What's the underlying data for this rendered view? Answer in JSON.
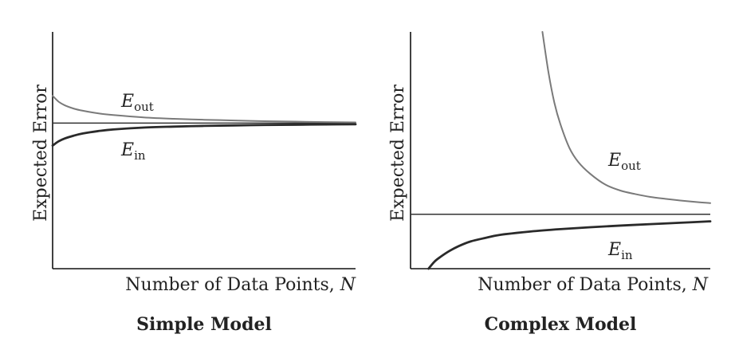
{
  "colors": {
    "e_out": "#7a7a7a",
    "e_in": "#2a2a2a",
    "asymptote": "#333333",
    "axis": "#111111"
  },
  "chart_data": [
    {
      "type": "line",
      "title": "Simple Model",
      "xlabel": "Number of Data Points, N",
      "xlabel_main": "Number of Data Points, ",
      "xlabel_var": "N",
      "ylabel": "Expected Error",
      "xlim": [
        0,
        100
      ],
      "ylim": [
        0,
        100
      ],
      "asymptote": 61.5,
      "series": [
        {
          "name": "Eout",
          "name_main": "E",
          "name_sub": "out",
          "x": [
            0,
            2,
            4,
            7,
            10,
            15,
            20,
            30,
            40,
            50,
            60,
            70,
            80,
            90,
            100
          ],
          "y": [
            73,
            70.5,
            69,
            67.6,
            66.7,
            65.6,
            64.9,
            63.9,
            63.3,
            62.9,
            62.6,
            62.3,
            62.1,
            61.9,
            61.8
          ]
        },
        {
          "name": "Ein",
          "name_main": "E",
          "name_sub": "in",
          "x": [
            0,
            2,
            4,
            7,
            10,
            15,
            20,
            30,
            40,
            50,
            60,
            70,
            80,
            90,
            100
          ],
          "y": [
            52,
            53.8,
            55,
            56.2,
            57.1,
            58.1,
            58.8,
            59.6,
            60,
            60.3,
            60.5,
            60.7,
            60.8,
            60.9,
            61
          ]
        }
      ]
    },
    {
      "type": "line",
      "title": "Complex Model",
      "xlabel": "Number of Data Points, N",
      "xlabel_main": "Number of Data Points, ",
      "xlabel_var": "N",
      "ylabel": "Expected Error",
      "xlim": [
        0,
        100
      ],
      "ylim": [
        0,
        100
      ],
      "asymptote": 23,
      "series": [
        {
          "name": "Eout",
          "name_main": "E",
          "name_sub": "out",
          "x": [
            44,
            46,
            48,
            50,
            53,
            56,
            60,
            65,
            70,
            75,
            80,
            85,
            90,
            95,
            100
          ],
          "y": [
            100,
            83,
            70,
            61,
            51,
            45,
            40,
            35.5,
            33,
            31.5,
            30.3,
            29.5,
            28.8,
            28.2,
            27.7
          ]
        },
        {
          "name": "Ein",
          "name_main": "E",
          "name_sub": "in",
          "x": [
            6,
            8,
            10,
            13,
            16,
            20,
            25,
            30,
            40,
            50,
            60,
            70,
            80,
            90,
            100
          ],
          "y": [
            0,
            3,
            5,
            7.5,
            9.5,
            11.5,
            13,
            14.3,
            15.7,
            16.7,
            17.5,
            18.2,
            18.8,
            19.4,
            20
          ]
        }
      ]
    }
  ]
}
